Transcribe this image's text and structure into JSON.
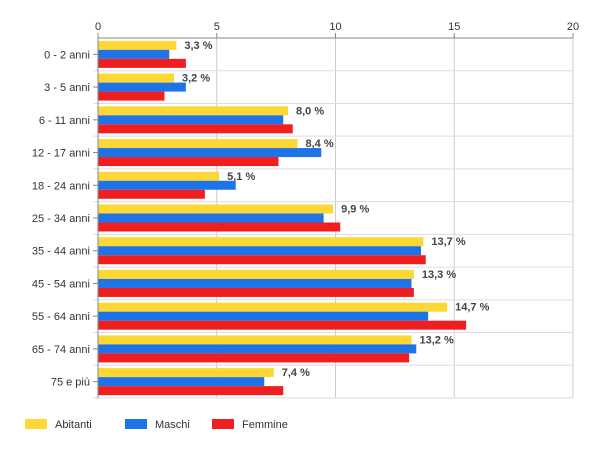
{
  "chart_data": {
    "type": "bar",
    "orientation": "horizontal",
    "categories": [
      "0 - 2 anni",
      "3 - 5 anni",
      "6 - 11 anni",
      "12 - 17 anni",
      "18 - 24 anni",
      "25 - 34 anni",
      "35 - 44 anni",
      "45 - 54 anni",
      "55 - 64 anni",
      "65 - 74 anni",
      "75 e più"
    ],
    "series": [
      {
        "name": "Abitanti",
        "color": "#FDD835",
        "values": [
          3.3,
          3.2,
          8.0,
          8.4,
          5.1,
          9.9,
          13.7,
          13.3,
          14.7,
          13.2,
          7.4
        ]
      },
      {
        "name": "Maschi",
        "color": "#1E73E8",
        "values": [
          3.0,
          3.7,
          7.8,
          9.4,
          5.8,
          9.5,
          13.6,
          13.2,
          13.9,
          13.4,
          7.0
        ]
      },
      {
        "name": "Femmine",
        "color": "#F01E1E",
        "values": [
          3.7,
          2.8,
          8.2,
          7.6,
          4.5,
          10.2,
          13.8,
          13.3,
          15.5,
          13.1,
          7.8
        ]
      }
    ],
    "data_labels": [
      "3,3 %",
      "3,2 %",
      "8,0 %",
      "8,4 %",
      "5,1 %",
      "9,9 %",
      "13,7 %",
      "13,3 %",
      "14,7 %",
      "13,2 %",
      "7,4 %"
    ],
    "x_ticks": [
      "0",
      "5",
      "10",
      "15",
      "20"
    ],
    "xlim": [
      0,
      20
    ],
    "title": "",
    "xlabel": "",
    "ylabel": "",
    "grid": true,
    "legend_position": "bottom-left"
  }
}
